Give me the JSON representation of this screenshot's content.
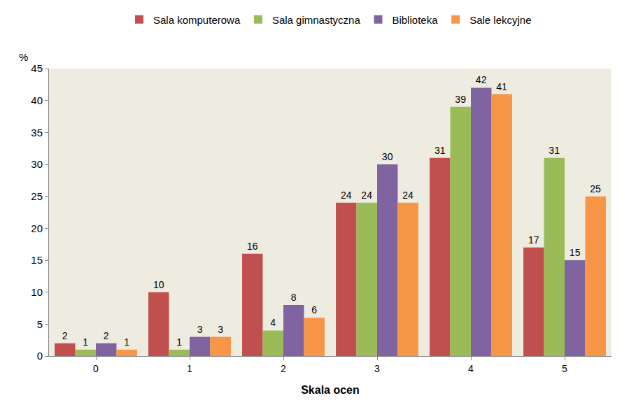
{
  "chart_data": {
    "type": "bar",
    "xlabel": "Skala ocen",
    "ylabel": "%",
    "categories": [
      "0",
      "1",
      "2",
      "3",
      "4",
      "5"
    ],
    "series": [
      {
        "name": "Sala komputerowa",
        "color": "#c0504d",
        "values": [
          2,
          10,
          16,
          24,
          31,
          17
        ]
      },
      {
        "name": "Sala gimnastyczna",
        "color": "#9bbb59",
        "values": [
          1,
          1,
          4,
          24,
          39,
          31
        ]
      },
      {
        "name": "Biblioteka",
        "color": "#8064a2",
        "values": [
          2,
          3,
          8,
          30,
          42,
          15
        ]
      },
      {
        "name": "Sale lekcyjne",
        "color": "#f79646",
        "values": [
          1,
          3,
          6,
          24,
          41,
          25
        ]
      }
    ],
    "ylim": [
      0,
      45
    ],
    "yticks": [
      0,
      5,
      10,
      15,
      20,
      25,
      30,
      35,
      40,
      45
    ],
    "grid": false,
    "legend": "top",
    "data_labels": true
  }
}
